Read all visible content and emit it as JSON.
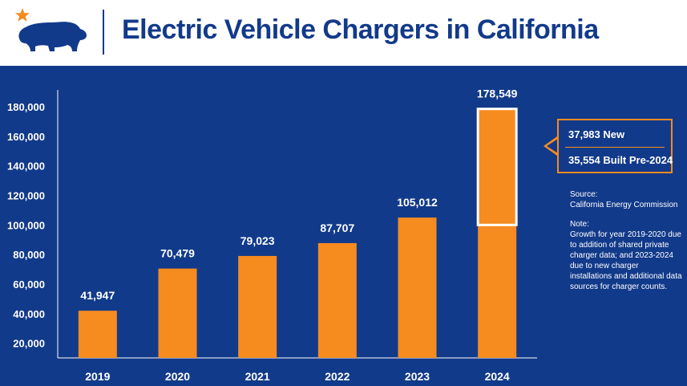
{
  "header": {
    "title": "Electric Vehicle Chargers in California"
  },
  "colors": {
    "background": "#123a8a",
    "bar": "#f68b1f",
    "text": "#ffffff",
    "title": "#123a8a"
  },
  "chart_data": {
    "type": "bar",
    "categories": [
      "2019",
      "2020",
      "2021",
      "2022",
      "2023",
      "2024"
    ],
    "values": [
      41947,
      70479,
      79023,
      87707,
      105012,
      178549
    ],
    "value_labels": [
      "41,947",
      "70,479",
      "79,023",
      "87,707",
      "105,012",
      "178,549"
    ],
    "highlight": {
      "category": "2024",
      "from": 100000,
      "to": 178549
    },
    "yticks": [
      20000,
      40000,
      60000,
      80000,
      100000,
      120000,
      140000,
      160000,
      180000
    ],
    "ytick_labels": [
      "20,000",
      "40,000",
      "60,000",
      "80,000",
      "100,000",
      "120,000",
      "140,000",
      "160,000",
      "180,000"
    ],
    "ylim": [
      10000,
      186000
    ],
    "title": "Electric Vehicle Chargers in California",
    "xlabel": "",
    "ylabel": ""
  },
  "callout": {
    "line1": "37,983 New",
    "line2": "35,554 Built Pre-2024"
  },
  "notes": {
    "source_head": "Source:",
    "source_body": "California Energy Commission",
    "note_head": "Note:",
    "note_body": "Growth for year 2019-2020 due to addition of shared private charger data; and 2023-2024 due to new charger installations and additional data sources for charger counts."
  }
}
